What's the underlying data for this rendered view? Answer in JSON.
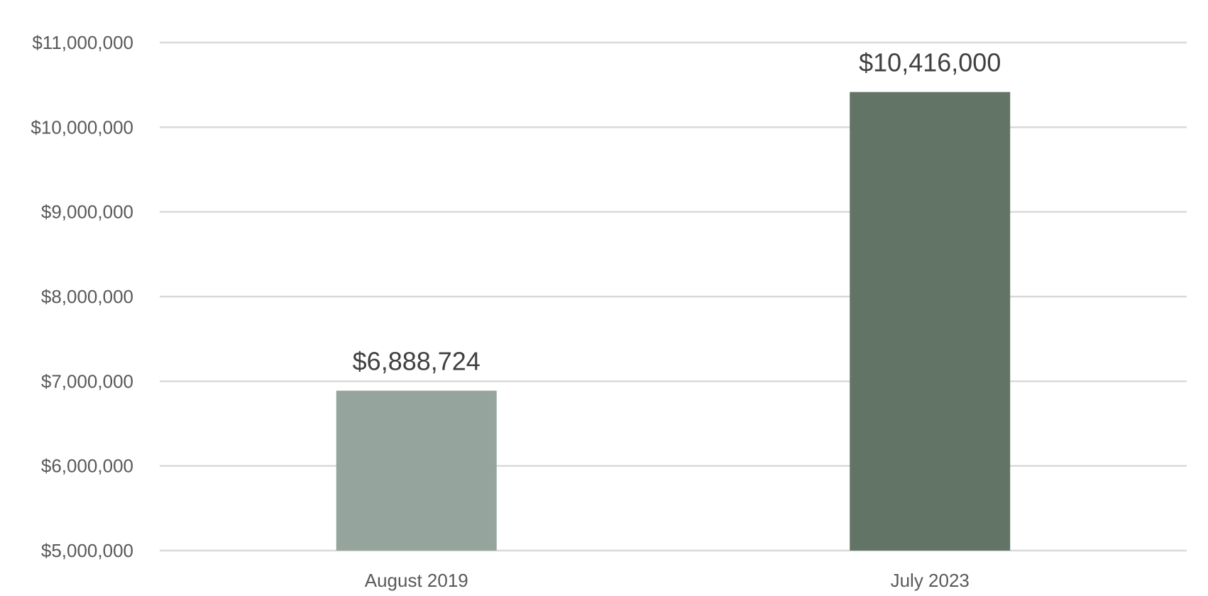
{
  "chart_data": {
    "type": "bar",
    "categories": [
      "August 2019",
      "July 2023"
    ],
    "values": [
      6888724,
      10416000
    ],
    "data_labels": [
      "$6,888,724",
      "$10,416,000"
    ],
    "bar_colors": [
      "#95a59d",
      "#627466"
    ],
    "ylim": [
      5000000,
      11000000
    ],
    "yticks": [
      5000000,
      6000000,
      7000000,
      8000000,
      9000000,
      10000000,
      11000000
    ],
    "ytick_labels": [
      "$5,000,000",
      "$6,000,000",
      "$7,000,000",
      "$8,000,000",
      "$9,000,000",
      "$10,000,000",
      "$11,000,000"
    ],
    "grid": true,
    "gridline_color": "#d9d9d9",
    "text_color": "#595959",
    "data_label_color": "#404040",
    "title": "",
    "xlabel": "",
    "ylabel": ""
  }
}
